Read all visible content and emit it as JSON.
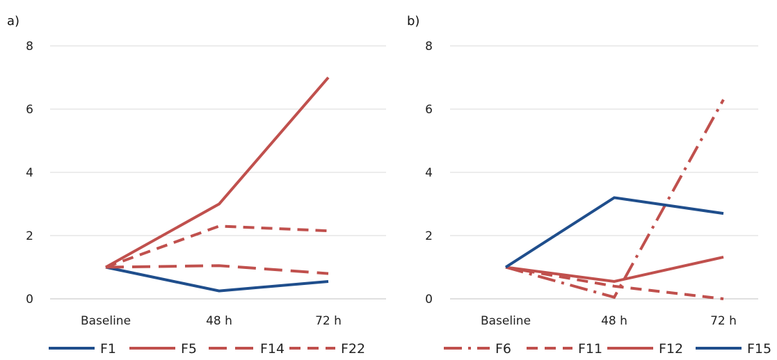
{
  "chart_data": [
    {
      "panel_label": "a)",
      "type": "line",
      "categories": [
        "Baseline",
        "48 h",
        "72 h"
      ],
      "ylim": [
        0,
        8
      ],
      "yticks": [
        0,
        2,
        4,
        6,
        8
      ],
      "grid": true,
      "legend_position": "bottom",
      "series": [
        {
          "name": "F1",
          "values": [
            1,
            0.25,
            0.55
          ],
          "color": "#1f4e8c",
          "dash": "solid"
        },
        {
          "name": "F5",
          "values": [
            1,
            3.0,
            7.0
          ],
          "color": "#c0504d",
          "dash": "solid"
        },
        {
          "name": "F14",
          "values": [
            1,
            1.05,
            0.8
          ],
          "color": "#c0504d",
          "dash": "longdash"
        },
        {
          "name": "F22",
          "values": [
            1,
            2.3,
            2.15
          ],
          "color": "#c0504d",
          "dash": "dash"
        }
      ]
    },
    {
      "panel_label": "b)",
      "type": "line",
      "categories": [
        "Baseline",
        "48 h",
        "72 h"
      ],
      "ylim": [
        0,
        8
      ],
      "yticks": [
        0,
        2,
        4,
        6,
        8
      ],
      "grid": true,
      "legend_position": "bottom",
      "series": [
        {
          "name": "F6",
          "values": [
            1,
            0.05,
            6.3
          ],
          "color": "#c0504d",
          "dash": "dashdot"
        },
        {
          "name": "F11",
          "values": [
            1,
            0.4,
            0.0
          ],
          "color": "#c0504d",
          "dash": "dash"
        },
        {
          "name": "F12",
          "values": [
            1,
            0.55,
            1.32
          ],
          "color": "#c0504d",
          "dash": "solid"
        },
        {
          "name": "F15",
          "values": [
            1,
            3.2,
            2.7
          ],
          "color": "#1f4e8c",
          "dash": "solid"
        }
      ]
    }
  ]
}
